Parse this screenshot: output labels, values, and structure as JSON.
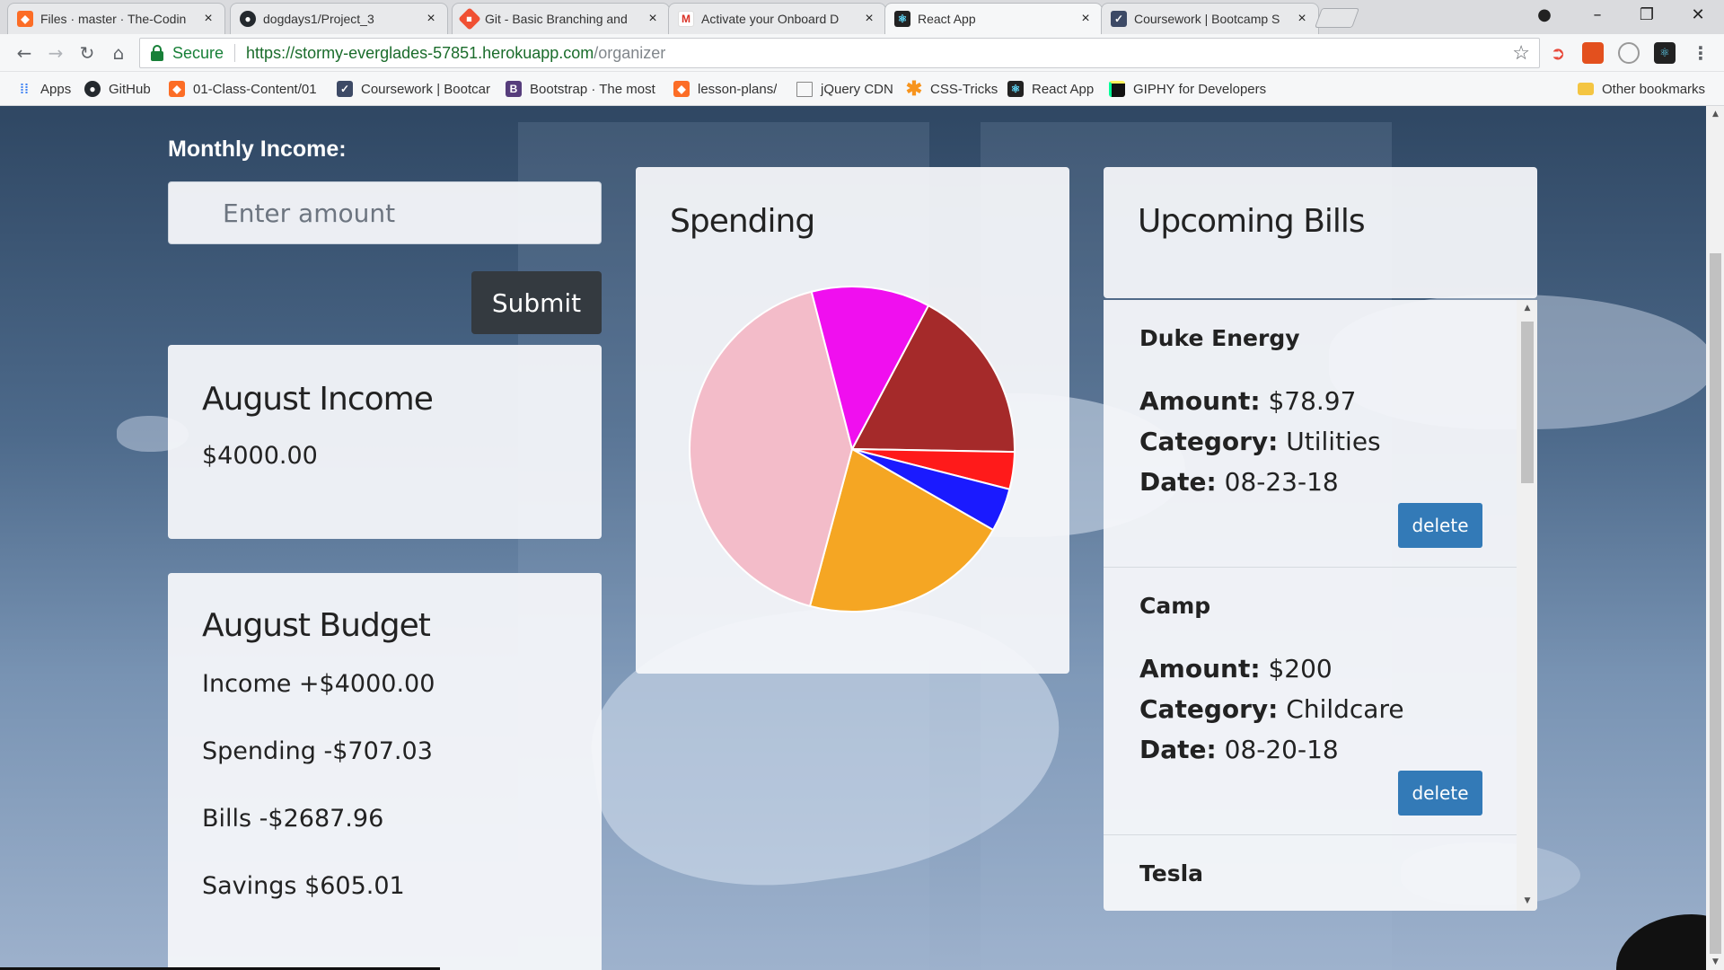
{
  "browser": {
    "tabs": [
      {
        "title": "Files · master · The-Codin",
        "icon": "gitlab-icon",
        "color": "#fc6d26",
        "active": false
      },
      {
        "title": "dogdays1/Project_3",
        "icon": "github-icon",
        "color": "#24292e",
        "active": false
      },
      {
        "title": "Git - Basic Branching and",
        "icon": "git-icon",
        "color": "#f05033",
        "active": false
      },
      {
        "title": "Activate your Onboard D",
        "icon": "gmail-icon",
        "color": "#d93025",
        "active": false
      },
      {
        "title": "React App",
        "icon": "react-icon",
        "color": "#222222",
        "active": true
      },
      {
        "title": "Coursework | Bootcamp S",
        "icon": "shield-icon",
        "color": "#3d4a66",
        "active": false
      }
    ],
    "address": {
      "secure_label": "Secure",
      "url_host": "https://stormy-everglades-57851.herokuapp.com",
      "url_path": "/organizer"
    },
    "bookmarks": [
      {
        "label": "Apps",
        "icon": "apps-grid-icon"
      },
      {
        "label": "GitHub",
        "icon": "github-icon"
      },
      {
        "label": "01-Class-Content/01",
        "icon": "gitlab-icon"
      },
      {
        "label": "Coursework | Bootcar",
        "icon": "shield-icon"
      },
      {
        "label": "Bootstrap · The most",
        "icon": "bootstrap-icon"
      },
      {
        "label": "lesson-plans/",
        "icon": "gitlab-icon"
      },
      {
        "label": "jQuery CDN",
        "icon": "page-icon"
      },
      {
        "label": "CSS-Tricks",
        "icon": "asterisk-icon"
      },
      {
        "label": "React App",
        "icon": "react-icon"
      },
      {
        "label": "GIPHY for Developers",
        "icon": "giphy-icon"
      }
    ],
    "other_bookmarks": "Other bookmarks"
  },
  "income_form": {
    "label": "Monthly Income:",
    "placeholder": "Enter amount",
    "submit_label": "Submit"
  },
  "income_card": {
    "title": "August Income",
    "amount": "$4000.00"
  },
  "budget_card": {
    "title": "August Budget",
    "income": "Income +$4000.00",
    "spending": "Spending -$707.03",
    "bills": "Bills -$2687.96",
    "savings": "Savings $605.01"
  },
  "spending_card": {
    "title": "Spending"
  },
  "chart_data": {
    "type": "pie",
    "slices": [
      {
        "value": 17.5,
        "color": "#a52a2a"
      },
      {
        "value": 3.7,
        "color": "#ff1a1a"
      },
      {
        "value": 4.3,
        "color": "#1a1aff"
      },
      {
        "value": 20.9,
        "color": "#f5a623"
      },
      {
        "value": 41.8,
        "color": "#f3bcc9"
      },
      {
        "value": 11.8,
        "color": "#f00fef"
      }
    ]
  },
  "bills_card": {
    "title": "Upcoming Bills",
    "amount_label": "Amount:",
    "category_label": "Category:",
    "date_label": "Date:",
    "delete_label": "delete",
    "bills": [
      {
        "name": "Duke Energy",
        "amount": "$78.97",
        "category": "Utilities",
        "date": "08-23-18"
      },
      {
        "name": "Camp",
        "amount": "$200",
        "category": "Childcare",
        "date": "08-20-18"
      },
      {
        "name": "Tesla",
        "amount": "",
        "category": "",
        "date": ""
      }
    ]
  }
}
